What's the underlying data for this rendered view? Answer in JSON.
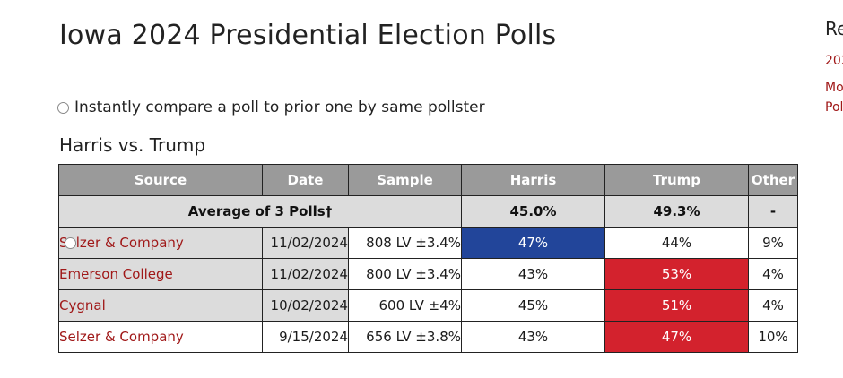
{
  "page": {
    "title": "Iowa 2024 Presidential Election Polls",
    "compare_label": "Instantly compare a poll to prior one by same pollster",
    "matchup_title": "Harris vs. Trump"
  },
  "table": {
    "headers": {
      "source": "Source",
      "date": "Date",
      "sample": "Sample",
      "harris": "Harris",
      "trump": "Trump",
      "other": "Other"
    },
    "average": {
      "label": "Average of 3 Polls†",
      "harris": "45.0%",
      "trump": "49.3%",
      "other": "-"
    },
    "rows": [
      {
        "source": "Selzer & Company",
        "date": "11/02/2024",
        "sample": "808 LV ±3.4%",
        "harris": "47%",
        "trump": "44%",
        "other": "9%",
        "winner": "harris",
        "has_radio": true
      },
      {
        "source": "Emerson College",
        "date": "11/02/2024",
        "sample": "800 LV ±3.4%",
        "harris": "43%",
        "trump": "53%",
        "other": "4%",
        "winner": "trump",
        "has_radio": false
      },
      {
        "source": "Cygnal",
        "date": "10/02/2024",
        "sample": "600 LV ±4%",
        "harris": "45%",
        "trump": "51%",
        "other": "4%",
        "winner": "trump",
        "has_radio": false
      },
      {
        "source": "Selzer & Company",
        "date": "9/15/2024",
        "sample": "656 LV ±3.8%",
        "harris": "43%",
        "trump": "47%",
        "other": "10%",
        "winner": "trump",
        "has_radio": false
      }
    ]
  },
  "sidebar": {
    "heading": "Re",
    "links": [
      "202",
      "Mo",
      "Pol"
    ]
  },
  "colors": {
    "harris_header": "#3e5a9c",
    "trump_header": "#c8323a",
    "harris_win": "#22459a",
    "trump_win": "#d3222d",
    "link": "#a01818"
  }
}
